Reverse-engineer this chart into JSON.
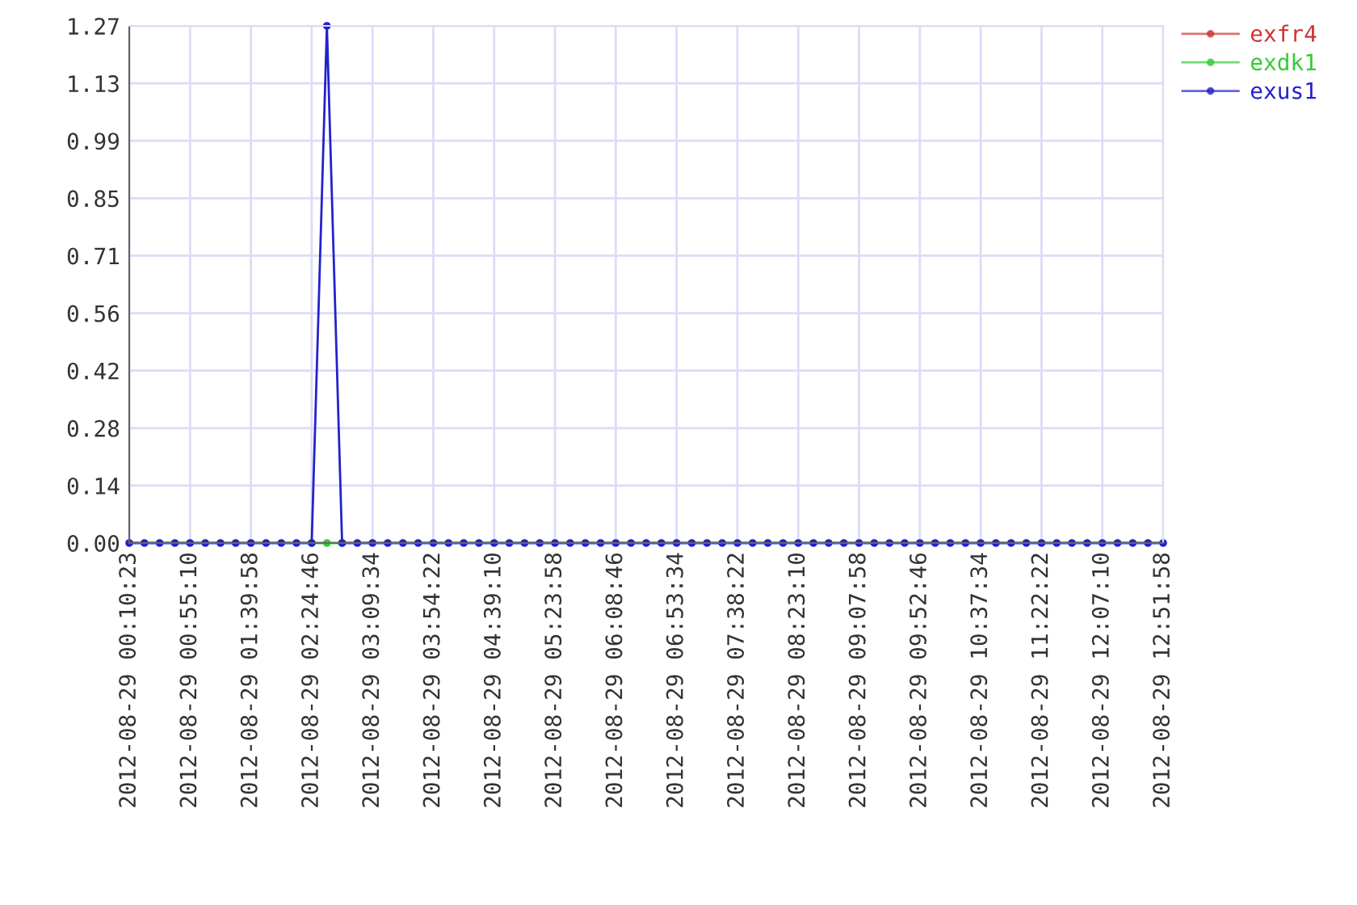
{
  "chart_data": {
    "type": "line",
    "categories": [
      "2012-08-29 00:10:23",
      null,
      null,
      null,
      "2012-08-29 00:55:10",
      null,
      null,
      null,
      "2012-08-29 01:39:58",
      null,
      null,
      null,
      "2012-08-29 02:24:46",
      null,
      null,
      null,
      "2012-08-29 03:09:34",
      null,
      null,
      null,
      "2012-08-29 03:54:22",
      null,
      null,
      null,
      "2012-08-29 04:39:10",
      null,
      null,
      null,
      "2012-08-29 05:23:58",
      null,
      null,
      null,
      "2012-08-29 06:08:46",
      null,
      null,
      null,
      "2012-08-29 06:53:34",
      null,
      null,
      null,
      "2012-08-29 07:38:22",
      null,
      null,
      null,
      "2012-08-29 08:23:10",
      null,
      null,
      null,
      "2012-08-29 09:07:58",
      null,
      null,
      null,
      "2012-08-29 09:52:46",
      null,
      null,
      null,
      "2012-08-29 10:37:34",
      null,
      null,
      null,
      "2012-08-29 11:22:22",
      null,
      null,
      null,
      "2012-08-29 12:07:10",
      null,
      null,
      null,
      "2012-08-29 12:51:58"
    ],
    "series": [
      {
        "name": "exfr4",
        "color": "#cc3333",
        "values": [
          null,
          null,
          null,
          null,
          null,
          null,
          null,
          null,
          null,
          null,
          null,
          null,
          null,
          null,
          null,
          null,
          null,
          null,
          null,
          null,
          null,
          null,
          null,
          null,
          null,
          null,
          null,
          null,
          null,
          null,
          null,
          null,
          null,
          null,
          null,
          null,
          null,
          null,
          null,
          null,
          null,
          null,
          null,
          null,
          null,
          null,
          null,
          null,
          null,
          null,
          null,
          null,
          null,
          null,
          null,
          null,
          null,
          null,
          null,
          null,
          null,
          null,
          null,
          null,
          null,
          null,
          null,
          null,
          null
        ]
      },
      {
        "name": "exdk1",
        "color": "#33cc33",
        "values": [
          null,
          null,
          null,
          null,
          null,
          null,
          null,
          null,
          null,
          null,
          null,
          null,
          0,
          0,
          0,
          null,
          null,
          null,
          null,
          null,
          null,
          null,
          null,
          null,
          null,
          null,
          null,
          null,
          null,
          null,
          null,
          null,
          null,
          null,
          null,
          null,
          null,
          null,
          null,
          null,
          null,
          null,
          null,
          null,
          null,
          null,
          null,
          null,
          null,
          null,
          null,
          null,
          null,
          null,
          null,
          null,
          null,
          null,
          null,
          null,
          null,
          null,
          null,
          null,
          null,
          null,
          null,
          null,
          null
        ]
      },
      {
        "name": "exus1",
        "color": "#2222cc",
        "values": [
          0,
          0,
          0,
          0,
          0,
          0,
          0,
          0,
          0,
          0,
          0,
          0,
          0,
          1.27,
          0,
          0,
          0,
          0,
          0,
          0,
          0,
          0,
          0,
          0,
          0,
          0,
          0,
          0,
          0,
          0,
          0,
          0,
          0,
          0,
          0,
          0,
          0,
          0,
          0,
          0,
          0,
          0,
          0,
          0,
          0,
          0,
          0,
          0,
          0,
          0,
          0,
          0,
          0,
          0,
          0,
          0,
          0,
          0,
          0,
          0,
          0,
          0,
          0,
          0,
          0,
          0,
          0,
          0,
          0
        ]
      }
    ],
    "ylim": [
      0,
      1.27
    ],
    "yticks": [
      {
        "value": 0,
        "label": "0.00"
      },
      {
        "value": 0.1411,
        "label": "0.14"
      },
      {
        "value": 0.2822,
        "label": "0.28"
      },
      {
        "value": 0.4233,
        "label": "0.42"
      },
      {
        "value": 0.5644,
        "label": "0.56"
      },
      {
        "value": 0.7056,
        "label": "0.71"
      },
      {
        "value": 0.8467,
        "label": "0.85"
      },
      {
        "value": 0.9878,
        "label": "0.99"
      },
      {
        "value": 1.1289,
        "label": "1.13"
      },
      {
        "value": 1.27,
        "label": "1.27"
      }
    ],
    "grid": true,
    "legend": "top right",
    "marker": "circle",
    "line_style": "solid"
  }
}
